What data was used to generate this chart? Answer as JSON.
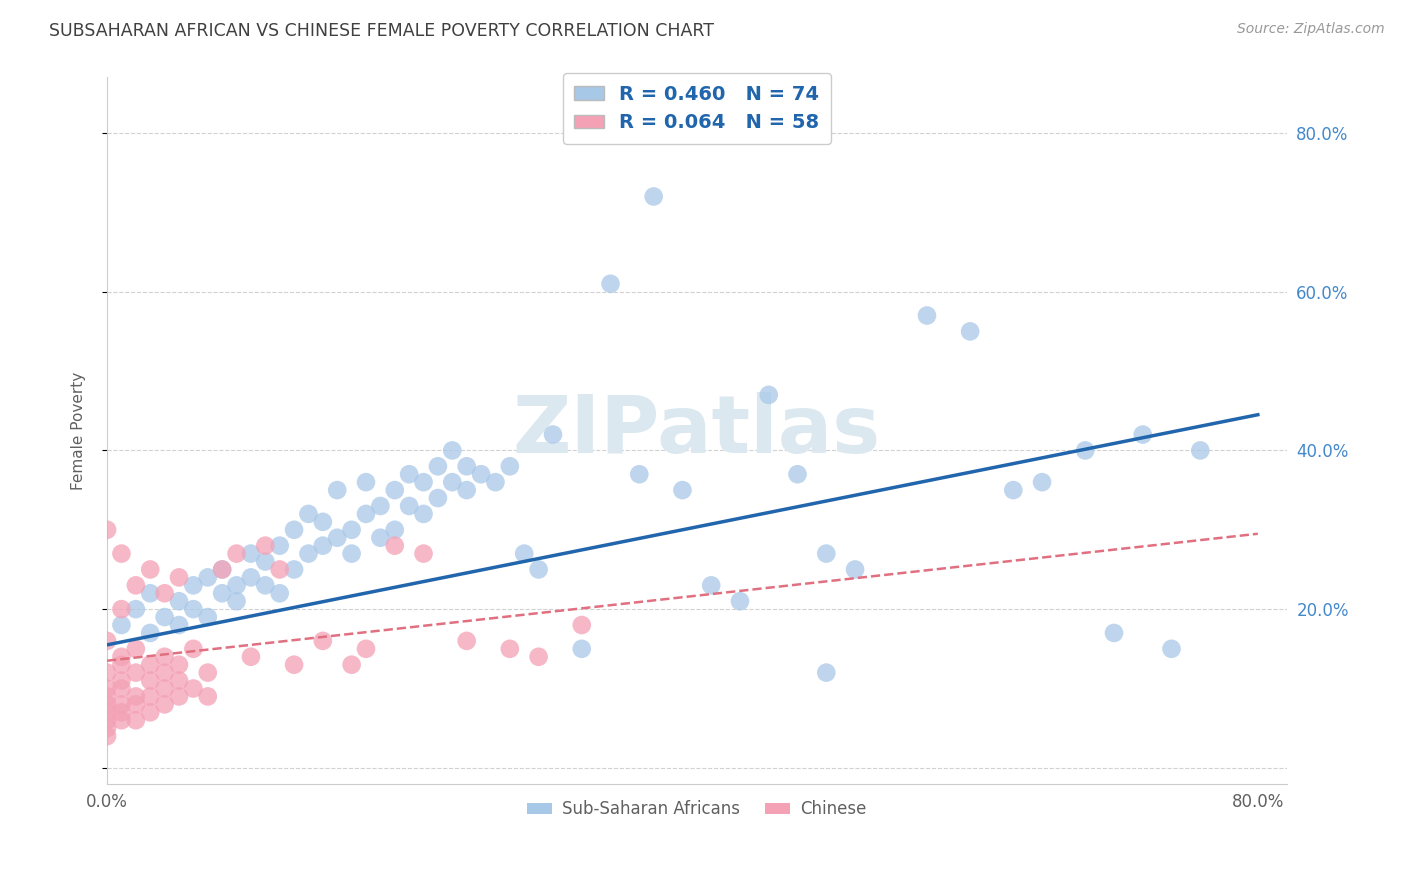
{
  "title": "SUBSAHARAN AFRICAN VS CHINESE FEMALE POVERTY CORRELATION CHART",
  "source": "Source: ZipAtlas.com",
  "ylabel": "Female Poverty",
  "xlim": [
    0.0,
    0.82
  ],
  "ylim": [
    -0.02,
    0.87
  ],
  "x_ticks": [
    0.0,
    0.2,
    0.4,
    0.6,
    0.8
  ],
  "x_tick_labels": [
    "0.0%",
    "",
    "",
    "",
    "80.0%"
  ],
  "y_ticks": [
    0.0,
    0.2,
    0.4,
    0.6,
    0.8
  ],
  "y_tick_labels_right": [
    "",
    "20.0%",
    "40.0%",
    "60.0%",
    "80.0%"
  ],
  "blue_R": 0.46,
  "blue_N": 74,
  "pink_R": 0.064,
  "pink_N": 58,
  "blue_color": "#a8c8e8",
  "pink_color": "#f4a0b5",
  "blue_line_color": "#2166ac",
  "pink_line_color": "#e07080",
  "legend_text_color": "#2166ac",
  "watermark_text": "ZIPatlas",
  "legend_label_blue": "Sub-Saharan Africans",
  "legend_label_pink": "Chinese",
  "background_color": "#ffffff",
  "grid_color": "#cccccc",
  "title_color": "#404040",
  "axis_label_color": "#606060",
  "right_tick_color": "#4488cc",
  "watermark_color": "#dce8f0",
  "blue_line_y0": 0.155,
  "blue_line_y1": 0.445,
  "pink_line_y0": 0.135,
  "pink_line_y1": 0.295,
  "blue_scatter_x": [
    0.01,
    0.02,
    0.03,
    0.03,
    0.04,
    0.05,
    0.05,
    0.06,
    0.06,
    0.07,
    0.07,
    0.08,
    0.08,
    0.09,
    0.09,
    0.1,
    0.1,
    0.11,
    0.11,
    0.12,
    0.12,
    0.13,
    0.13,
    0.14,
    0.14,
    0.15,
    0.15,
    0.16,
    0.16,
    0.17,
    0.17,
    0.18,
    0.18,
    0.19,
    0.19,
    0.2,
    0.2,
    0.21,
    0.21,
    0.22,
    0.22,
    0.23,
    0.23,
    0.24,
    0.24,
    0.25,
    0.25,
    0.26,
    0.27,
    0.28,
    0.29,
    0.3,
    0.31,
    0.33,
    0.35,
    0.37,
    0.4,
    0.42,
    0.44,
    0.46,
    0.48,
    0.5,
    0.52,
    0.57,
    0.6,
    0.63,
    0.65,
    0.68,
    0.7,
    0.72,
    0.74,
    0.76,
    0.5,
    0.38
  ],
  "blue_scatter_y": [
    0.18,
    0.2,
    0.17,
    0.22,
    0.19,
    0.21,
    0.18,
    0.2,
    0.23,
    0.19,
    0.24,
    0.22,
    0.25,
    0.21,
    0.23,
    0.24,
    0.27,
    0.23,
    0.26,
    0.22,
    0.28,
    0.25,
    0.3,
    0.27,
    0.32,
    0.28,
    0.31,
    0.29,
    0.35,
    0.27,
    0.3,
    0.32,
    0.36,
    0.29,
    0.33,
    0.3,
    0.35,
    0.33,
    0.37,
    0.32,
    0.36,
    0.34,
    0.38,
    0.36,
    0.4,
    0.35,
    0.38,
    0.37,
    0.36,
    0.38,
    0.27,
    0.25,
    0.42,
    0.15,
    0.61,
    0.37,
    0.35,
    0.23,
    0.21,
    0.47,
    0.37,
    0.27,
    0.25,
    0.57,
    0.55,
    0.35,
    0.36,
    0.4,
    0.17,
    0.42,
    0.15,
    0.4,
    0.12,
    0.72
  ],
  "pink_scatter_x": [
    0.0,
    0.0,
    0.0,
    0.0,
    0.0,
    0.0,
    0.0,
    0.0,
    0.01,
    0.01,
    0.01,
    0.01,
    0.01,
    0.01,
    0.01,
    0.02,
    0.02,
    0.02,
    0.02,
    0.02,
    0.03,
    0.03,
    0.03,
    0.03,
    0.04,
    0.04,
    0.04,
    0.04,
    0.05,
    0.05,
    0.05,
    0.06,
    0.06,
    0.07,
    0.07,
    0.08,
    0.09,
    0.1,
    0.11,
    0.12,
    0.13,
    0.15,
    0.17,
    0.18,
    0.2,
    0.22,
    0.25,
    0.28,
    0.3,
    0.33,
    0.0,
    0.01,
    0.02,
    0.03,
    0.0,
    0.01,
    0.04,
    0.05
  ],
  "pink_scatter_y": [
    0.08,
    0.06,
    0.1,
    0.04,
    0.12,
    0.07,
    0.09,
    0.05,
    0.11,
    0.08,
    0.13,
    0.06,
    0.1,
    0.14,
    0.07,
    0.09,
    0.12,
    0.06,
    0.15,
    0.08,
    0.11,
    0.07,
    0.13,
    0.09,
    0.1,
    0.14,
    0.08,
    0.12,
    0.09,
    0.11,
    0.13,
    0.1,
    0.15,
    0.12,
    0.09,
    0.25,
    0.27,
    0.14,
    0.28,
    0.25,
    0.13,
    0.16,
    0.13,
    0.15,
    0.28,
    0.27,
    0.16,
    0.15,
    0.14,
    0.18,
    0.3,
    0.27,
    0.23,
    0.25,
    0.16,
    0.2,
    0.22,
    0.24
  ]
}
